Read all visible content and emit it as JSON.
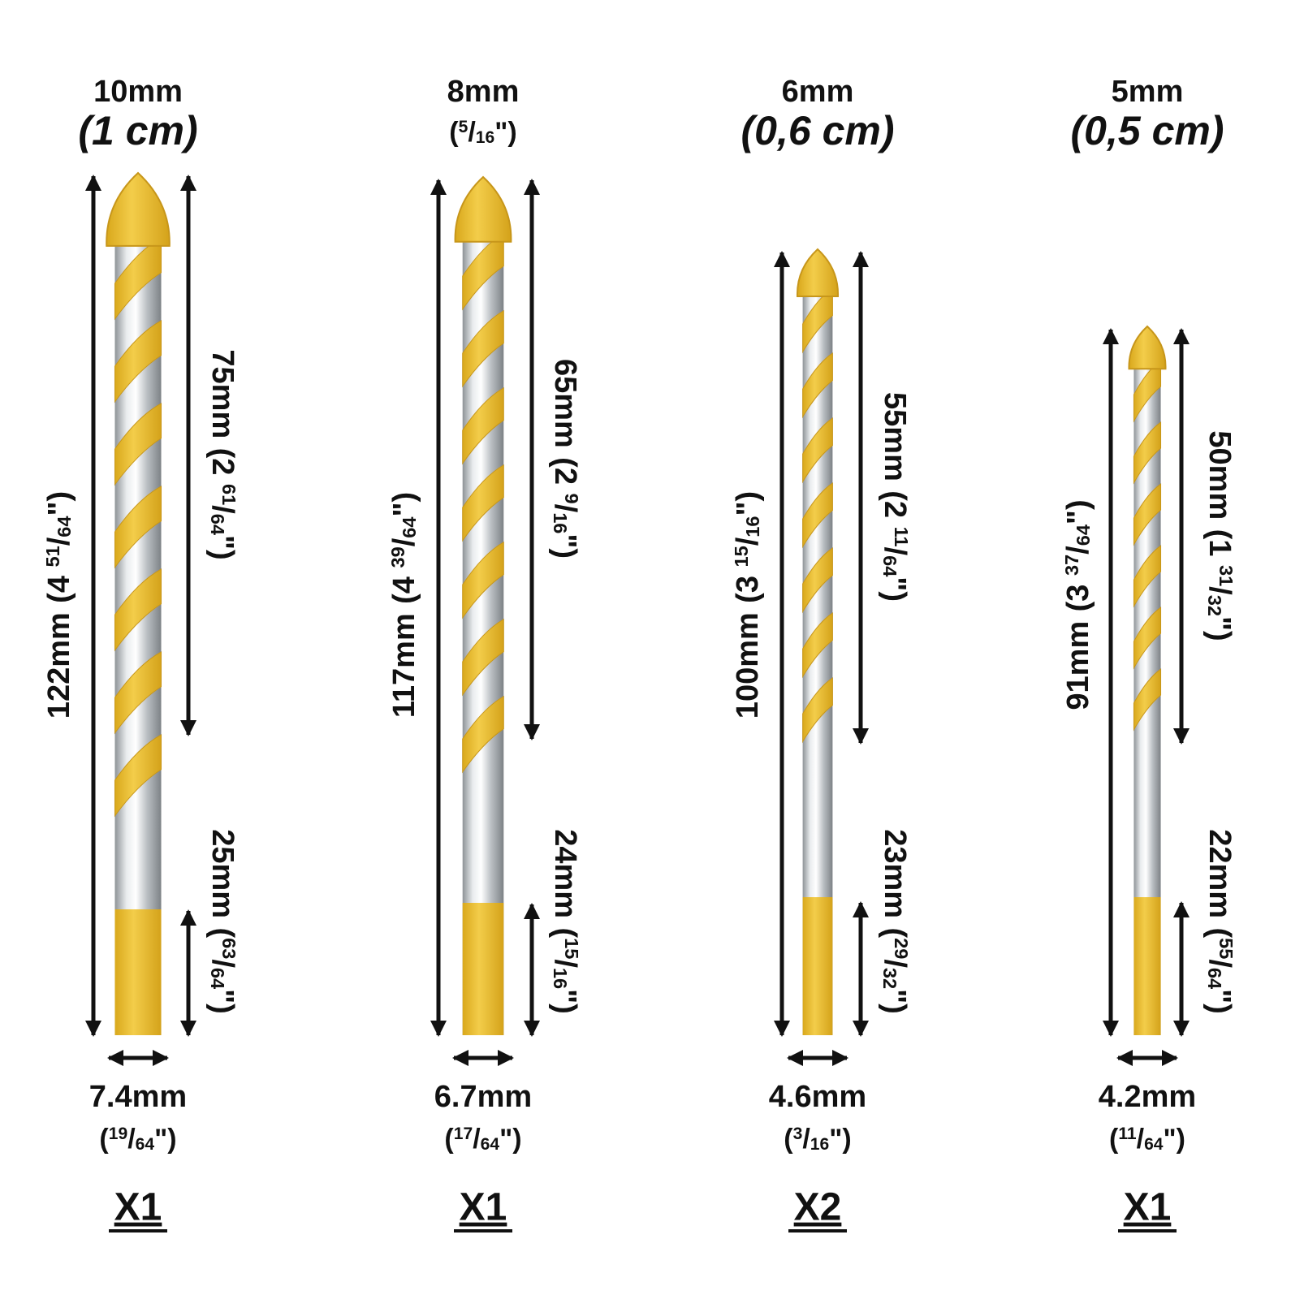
{
  "bits": [
    {
      "size": "10mm",
      "size_alt": {
        "text": "(1 cm)"
      },
      "total_length": {
        "metric": "122mm",
        "open": "(4 ",
        "num": "51",
        "slash": "/",
        "den": "64",
        "close": "\")"
      },
      "flute_length": {
        "metric": "75mm",
        "open": "(2 ",
        "num": "61",
        "slash": "/",
        "den": "64",
        "close": "\")"
      },
      "shank_length": {
        "metric": "25mm",
        "open": "(",
        "num": "63",
        "slash": "/",
        "den": "64",
        "close": "\")"
      },
      "shank_diameter": "7.4mm",
      "diameter_alt": {
        "open": "(",
        "num": "19",
        "slash": "/",
        "den": "64",
        "close": "\")"
      },
      "quantity": "X1"
    },
    {
      "size": "8mm",
      "size_alt": {
        "open": "(",
        "num": "5",
        "slash": "/",
        "den": "16",
        "close": "\")"
      },
      "total_length": {
        "metric": "117mm",
        "open": "(4 ",
        "num": "39",
        "slash": "/",
        "den": "64",
        "close": "\")"
      },
      "flute_length": {
        "metric": "65mm",
        "open": "(2 ",
        "num": "9",
        "slash": "/",
        "den": "16",
        "close": "\")"
      },
      "shank_length": {
        "metric": "24mm",
        "open": "(",
        "num": "15",
        "slash": "/",
        "den": "16",
        "close": "\")"
      },
      "shank_diameter": "6.7mm",
      "diameter_alt": {
        "open": "(",
        "num": "17",
        "slash": "/",
        "den": "64",
        "close": "\")"
      },
      "quantity": "X1"
    },
    {
      "size": "6mm",
      "size_alt": {
        "text": "(0,6 cm)"
      },
      "total_length": {
        "metric": "100mm",
        "open": "(3 ",
        "num": "15",
        "slash": "/",
        "den": "16",
        "close": "\")"
      },
      "flute_length": {
        "metric": "55mm",
        "open": "(2 ",
        "num": "11",
        "slash": "/",
        "den": "64",
        "close": "\")"
      },
      "shank_length": {
        "metric": "23mm",
        "open": "(",
        "num": "29",
        "slash": "/",
        "den": "32",
        "close": "\")"
      },
      "shank_diameter": "4.6mm",
      "diameter_alt": {
        "open": "(",
        "num": "3",
        "slash": "/",
        "den": "16",
        "close": "\")"
      },
      "quantity": "X2"
    },
    {
      "size": "5mm",
      "size_alt": {
        "text": "(0,5 cm)"
      },
      "total_length": {
        "metric": "91mm",
        "open": "(3 ",
        "num": "37",
        "slash": "/",
        "den": "64",
        "close": "\")"
      },
      "flute_length": {
        "metric": "50mm",
        "open": "(1 ",
        "num": "31",
        "slash": "/",
        "den": "32",
        "close": "\")"
      },
      "shank_length": {
        "metric": "22mm",
        "open": "(",
        "num": "55",
        "slash": "/",
        "den": "64",
        "close": "\")"
      },
      "shank_diameter": "4.2mm",
      "diameter_alt": {
        "open": "(",
        "num": "11",
        "slash": "/",
        "den": "64",
        "close": "\")"
      },
      "quantity": "X1"
    }
  ]
}
